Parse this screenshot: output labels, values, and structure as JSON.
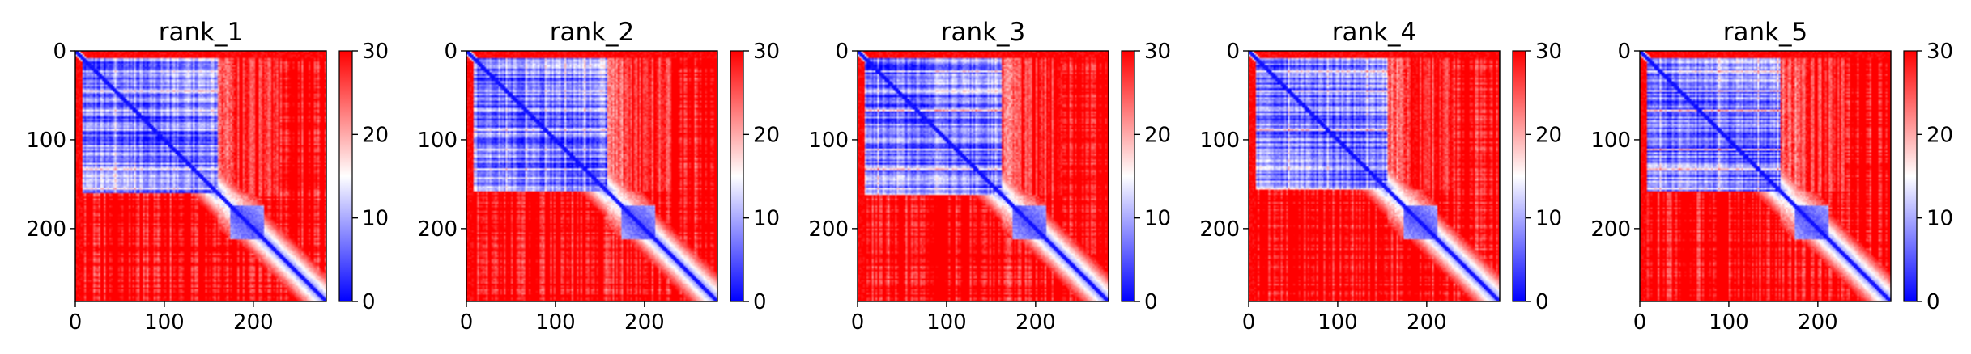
{
  "chart_data": {
    "type": "heatmap",
    "description_kind": "predicted aligned error matrices",
    "colormap": {
      "name": "bwr",
      "colors": [
        "#0000ff",
        "#ffffff",
        "#ff0000"
      ],
      "vmin": 0,
      "vmax": 30
    },
    "matrix_size": 282,
    "xlim": [
      0,
      282
    ],
    "ylim": [
      282,
      0
    ],
    "x_ticks": [
      0,
      100,
      200
    ],
    "y_ticks": [
      0,
      100,
      200
    ],
    "colorbar_ticks": [
      0,
      10,
      20,
      30
    ],
    "domains": [
      {
        "start": 0,
        "end": 155,
        "intra_value": 5
      },
      {
        "start": 155,
        "end": 175,
        "intra_value": 14
      },
      {
        "start": 175,
        "end": 212,
        "intra_value": 4
      },
      {
        "start": 212,
        "end": 282,
        "intra_value": 18
      }
    ],
    "panels": [
      {
        "title": "rank_1",
        "domain_a_end": 160,
        "n_term_loop": [
          0,
          8
        ],
        "noise_seed": 11
      },
      {
        "title": "rank_2",
        "domain_a_end": 158,
        "n_term_loop": [
          0,
          8
        ],
        "noise_seed": 23
      },
      {
        "title": "rank_3",
        "domain_a_end": 162,
        "n_term_loop": [
          0,
          8
        ],
        "noise_seed": 37
      },
      {
        "title": "rank_4",
        "domain_a_end": 157,
        "n_term_loop": [
          0,
          8
        ],
        "noise_seed": 41
      },
      {
        "title": "rank_5",
        "domain_a_end": 159,
        "n_term_loop": [
          0,
          8
        ],
        "noise_seed": 53
      }
    ]
  }
}
